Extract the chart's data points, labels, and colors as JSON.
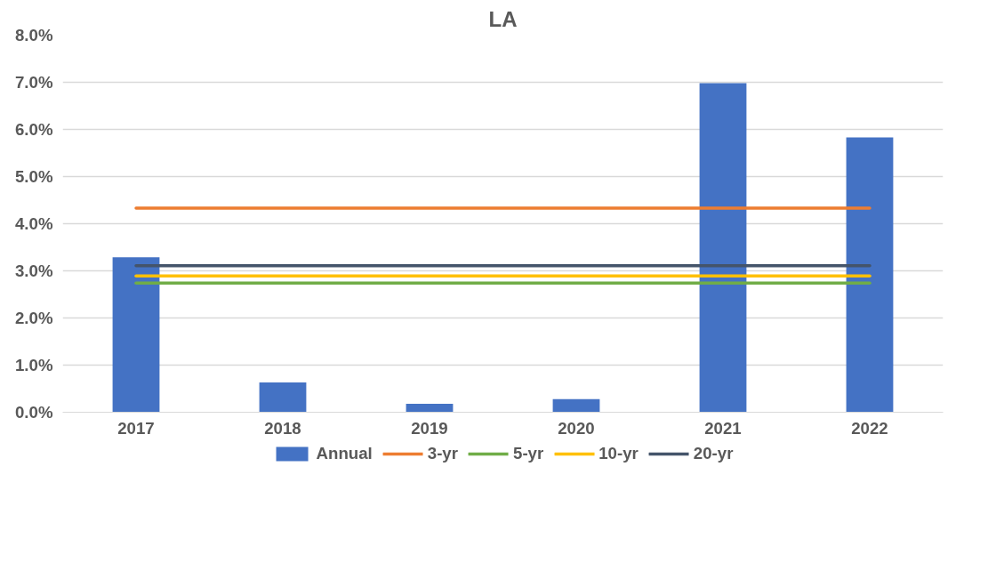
{
  "chart_data": {
    "type": "bar",
    "title": "LA",
    "categories": [
      "2017",
      "2018",
      "2019",
      "2020",
      "2021",
      "2022"
    ],
    "series": [
      {
        "name": "Annual",
        "type": "bar",
        "color": "#4472c4",
        "values": [
          3.29,
          0.63,
          0.18,
          0.28,
          6.98,
          5.83
        ]
      },
      {
        "name": "3-yr",
        "type": "line",
        "color": "#ed7d31",
        "values": [
          4.33,
          4.33,
          4.33,
          4.33,
          4.33,
          4.33
        ]
      },
      {
        "name": "5-yr",
        "type": "line",
        "color": "#70ad47",
        "values": [
          2.74,
          2.74,
          2.74,
          2.74,
          2.74,
          2.74
        ]
      },
      {
        "name": "10-yr",
        "type": "line",
        "color": "#ffc000",
        "values": [
          2.89,
          2.89,
          2.89,
          2.89,
          2.89,
          2.89
        ]
      },
      {
        "name": "20-yr",
        "type": "line",
        "color": "#44546a",
        "values": [
          3.11,
          3.11,
          3.11,
          3.11,
          3.11,
          3.11
        ]
      }
    ],
    "ylim": [
      0,
      8
    ],
    "yticks": [
      {
        "value": 0,
        "label": "0.0%"
      },
      {
        "value": 1,
        "label": "1.0%"
      },
      {
        "value": 2,
        "label": "2.0%"
      },
      {
        "value": 3,
        "label": "3.0%"
      },
      {
        "value": 4,
        "label": "4.0%"
      },
      {
        "value": 5,
        "label": "5.0%"
      },
      {
        "value": 6,
        "label": "6.0%"
      },
      {
        "value": 7,
        "label": "7.0%"
      },
      {
        "value": 8,
        "label": "8.0%"
      }
    ],
    "grid": "y",
    "legend": "bottom",
    "line_style": "solid",
    "marker": "none"
  }
}
